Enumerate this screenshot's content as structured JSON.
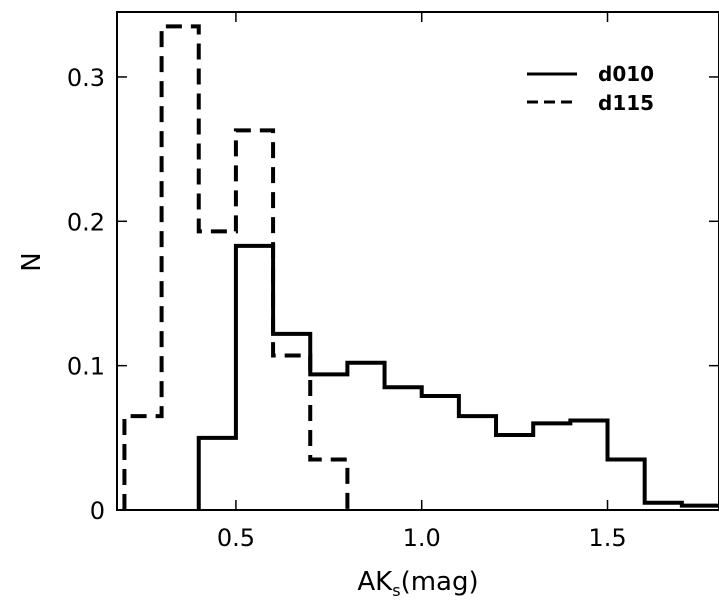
{
  "chart_data": {
    "type": "histogram-step",
    "xlabel_main": "AK",
    "xlabel_sub": "s",
    "xlabel_unit": "(mag)",
    "ylabel": "N",
    "xlim": [
      0.18,
      1.8
    ],
    "ylim": [
      0,
      0.345
    ],
    "x_ticks": [
      0.5,
      1.0,
      1.5
    ],
    "x_tick_labels": [
      "0.5",
      "1.0",
      "1.5"
    ],
    "y_ticks": [
      0,
      0.1,
      0.2,
      0.3
    ],
    "y_tick_labels": [
      "0",
      "0.1",
      "0.2",
      "0.3"
    ],
    "legend_position": "top-right",
    "series": [
      {
        "name": "d010",
        "style": "solid",
        "bin_edges": [
          0.4,
          0.5,
          0.6,
          0.7,
          0.8,
          0.9,
          1.0,
          1.1,
          1.2,
          1.3,
          1.4,
          1.5,
          1.6,
          1.7,
          1.8
        ],
        "values": [
          0.05,
          0.183,
          0.122,
          0.094,
          0.102,
          0.085,
          0.079,
          0.065,
          0.052,
          0.06,
          0.062,
          0.035,
          0.005,
          0.003
        ]
      },
      {
        "name": "d115",
        "style": "dashed",
        "bin_edges": [
          0.2,
          0.3,
          0.4,
          0.5,
          0.6,
          0.7,
          0.8
        ],
        "values": [
          0.065,
          0.335,
          0.193,
          0.263,
          0.107,
          0.035
        ]
      }
    ]
  }
}
